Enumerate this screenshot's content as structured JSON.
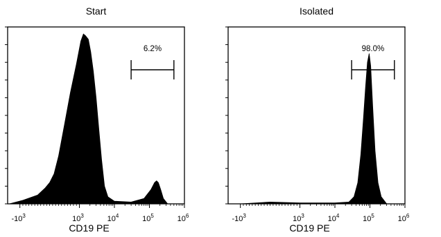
{
  "chart_data": [
    {
      "type": "area",
      "title": "Start",
      "xlabel": "CD19 PE",
      "ylabel": "",
      "x_scale": "biexponential",
      "xlim": [
        -3000,
        1000000
      ],
      "x_ticks": [
        {
          "value": -1000,
          "base": "-10",
          "exp": "3"
        },
        {
          "value": 1000,
          "base": "10",
          "exp": "3"
        },
        {
          "value": 10000,
          "base": "10",
          "exp": "4"
        },
        {
          "value": 100000,
          "base": "10",
          "exp": "5"
        },
        {
          "value": 1000000,
          "base": "10",
          "exp": "6"
        }
      ],
      "grid": false,
      "series": [
        {
          "values_description": "relative event count (0-1)",
          "points": [
            {
              "x": -2000,
              "y": 0.0
            },
            {
              "x": -900,
              "y": 0.02
            },
            {
              "x": -400,
              "y": 0.05
            },
            {
              "x": -150,
              "y": 0.09
            },
            {
              "x": 0,
              "y": 0.12
            },
            {
              "x": 150,
              "y": 0.17
            },
            {
              "x": 300,
              "y": 0.27
            },
            {
              "x": 500,
              "y": 0.45
            },
            {
              "x": 700,
              "y": 0.63
            },
            {
              "x": 900,
              "y": 0.79
            },
            {
              "x": 1100,
              "y": 0.92
            },
            {
              "x": 1300,
              "y": 0.96
            },
            {
              "x": 1500,
              "y": 0.95
            },
            {
              "x": 1800,
              "y": 0.93
            },
            {
              "x": 2100,
              "y": 0.86
            },
            {
              "x": 2500,
              "y": 0.75
            },
            {
              "x": 3000,
              "y": 0.6
            },
            {
              "x": 3600,
              "y": 0.42
            },
            {
              "x": 4300,
              "y": 0.25
            },
            {
              "x": 5200,
              "y": 0.1
            },
            {
              "x": 6500,
              "y": 0.04
            },
            {
              "x": 10000,
              "y": 0.015
            },
            {
              "x": 30000,
              "y": 0.01
            },
            {
              "x": 70000,
              "y": 0.03
            },
            {
              "x": 110000,
              "y": 0.08
            },
            {
              "x": 140000,
              "y": 0.12
            },
            {
              "x": 160000,
              "y": 0.13
            },
            {
              "x": 180000,
              "y": 0.12
            },
            {
              "x": 210000,
              "y": 0.08
            },
            {
              "x": 250000,
              "y": 0.03
            },
            {
              "x": 330000,
              "y": 0.0
            }
          ]
        }
      ],
      "gate": {
        "label": "6.2%",
        "x_start": 30000,
        "x_end": 500000
      }
    },
    {
      "type": "area",
      "title": "Isolated",
      "xlabel": "CD19 PE",
      "ylabel": "",
      "x_scale": "biexponential",
      "xlim": [
        -3000,
        1000000
      ],
      "x_ticks": [
        {
          "value": -1000,
          "base": "-10",
          "exp": "3"
        },
        {
          "value": 1000,
          "base": "10",
          "exp": "3"
        },
        {
          "value": 10000,
          "base": "10",
          "exp": "4"
        },
        {
          "value": 100000,
          "base": "10",
          "exp": "5"
        },
        {
          "value": 1000000,
          "base": "10",
          "exp": "6"
        }
      ],
      "grid": false,
      "series": [
        {
          "values_description": "relative event count (0-1)",
          "points": [
            {
              "x": -2000,
              "y": 0.0
            },
            {
              "x": -1000,
              "y": 0.0
            },
            {
              "x": 0,
              "y": 0.01
            },
            {
              "x": 1000,
              "y": 0.005
            },
            {
              "x": 10000,
              "y": 0.005
            },
            {
              "x": 25000,
              "y": 0.01
            },
            {
              "x": 35000,
              "y": 0.04
            },
            {
              "x": 45000,
              "y": 0.12
            },
            {
              "x": 55000,
              "y": 0.28
            },
            {
              "x": 65000,
              "y": 0.48
            },
            {
              "x": 75000,
              "y": 0.66
            },
            {
              "x": 85000,
              "y": 0.8
            },
            {
              "x": 95000,
              "y": 0.85
            },
            {
              "x": 105000,
              "y": 0.78
            },
            {
              "x": 120000,
              "y": 0.55
            },
            {
              "x": 140000,
              "y": 0.3
            },
            {
              "x": 170000,
              "y": 0.12
            },
            {
              "x": 210000,
              "y": 0.04
            },
            {
              "x": 300000,
              "y": 0.0
            }
          ]
        }
      ],
      "gate": {
        "label": "98.0%",
        "x_start": 30000,
        "x_end": 500000
      }
    }
  ]
}
